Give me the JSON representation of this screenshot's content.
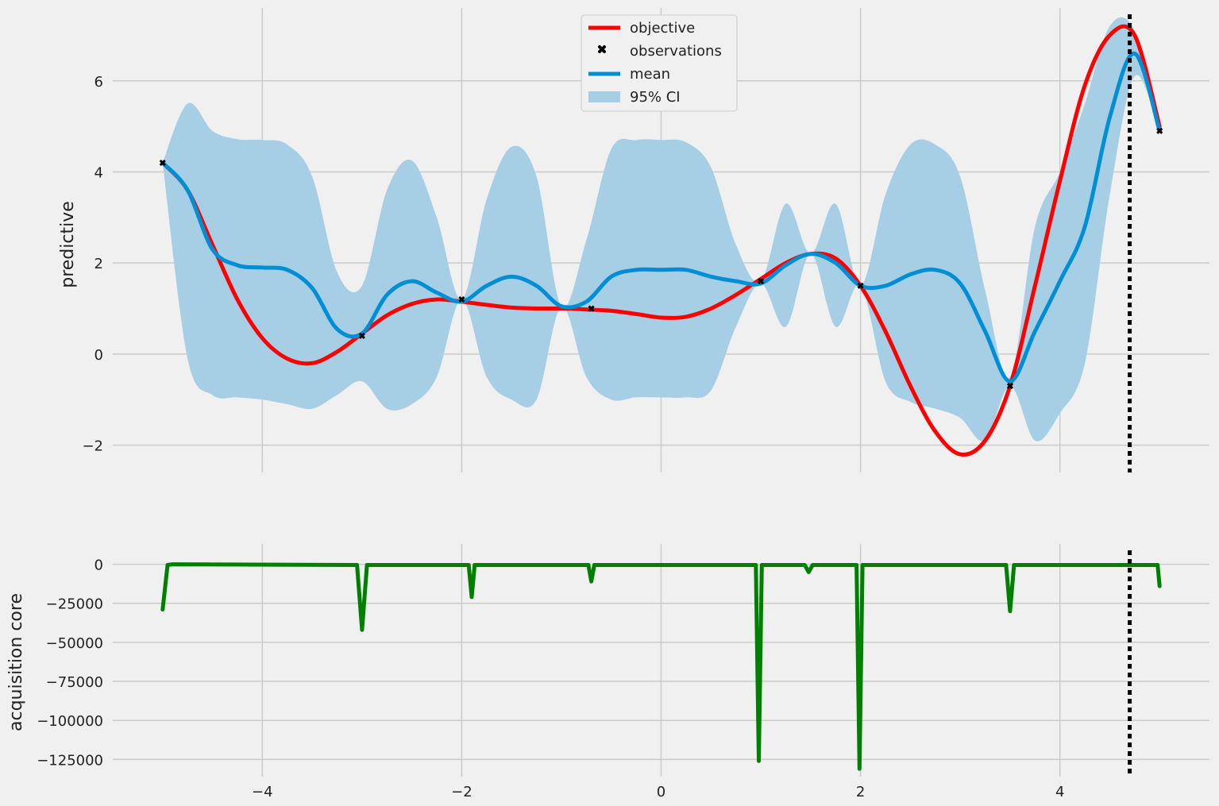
{
  "chart_data": [
    {
      "type": "line",
      "ylabel": "predictive",
      "xlim": [
        -5.5,
        5.5
      ],
      "ylim": [
        -2.6,
        7.6
      ],
      "grid": true,
      "xticks": [
        -4,
        -2,
        0,
        2,
        4
      ],
      "xtick_labels": [
        "",
        "",
        "",
        "",
        ""
      ],
      "yticks": [
        -2,
        0,
        2,
        4,
        6
      ],
      "ytick_labels": [
        "−2",
        "0",
        "2",
        "4",
        "6"
      ],
      "legend": {
        "position": "top-center",
        "entries": [
          {
            "label": "objective",
            "kind": "line",
            "color": "#ff0000"
          },
          {
            "label": "observations",
            "kind": "marker",
            "color": "#000000"
          },
          {
            "label": "mean",
            "kind": "line",
            "color": "#008fd5"
          },
          {
            "label": "95% CI",
            "kind": "band",
            "color": "#a6cfe6"
          }
        ]
      },
      "vline_x": 4.7,
      "series": [
        {
          "name": "objective",
          "color": "#ff0000",
          "x": [
            -5.0,
            -4.75,
            -4.5,
            -4.25,
            -4.0,
            -3.75,
            -3.5,
            -3.25,
            -3.0,
            -2.75,
            -2.5,
            -2.25,
            -2.0,
            -1.75,
            -1.5,
            -1.25,
            -1.0,
            -0.75,
            -0.5,
            -0.25,
            0.0,
            0.25,
            0.5,
            0.75,
            1.0,
            1.25,
            1.5,
            1.75,
            2.0,
            2.25,
            2.5,
            2.75,
            3.0,
            3.25,
            3.5,
            3.75,
            4.0,
            4.25,
            4.5,
            4.75,
            5.0
          ],
          "y": [
            4.2,
            3.6,
            2.4,
            1.2,
            0.35,
            -0.1,
            -0.2,
            0.05,
            0.45,
            0.85,
            1.1,
            1.2,
            1.15,
            1.08,
            1.02,
            1.0,
            1.0,
            0.98,
            0.95,
            0.88,
            0.8,
            0.82,
            1.0,
            1.3,
            1.65,
            2.0,
            2.2,
            2.1,
            1.5,
            0.5,
            -0.7,
            -1.7,
            -2.2,
            -1.9,
            -0.7,
            1.5,
            3.8,
            5.9,
            7.0,
            7.0,
            5.0
          ]
        },
        {
          "name": "mean",
          "color": "#008fd5",
          "x": [
            -5.0,
            -4.75,
            -4.5,
            -4.25,
            -4.0,
            -3.75,
            -3.5,
            -3.25,
            -3.0,
            -2.75,
            -2.5,
            -2.25,
            -2.0,
            -1.75,
            -1.5,
            -1.25,
            -1.0,
            -0.75,
            -0.5,
            -0.25,
            0.0,
            0.25,
            0.5,
            0.75,
            1.0,
            1.25,
            1.5,
            1.75,
            2.0,
            2.25,
            2.5,
            2.75,
            3.0,
            3.25,
            3.5,
            3.75,
            4.0,
            4.25,
            4.5,
            4.75,
            5.0
          ],
          "y": [
            4.2,
            3.6,
            2.3,
            1.95,
            1.9,
            1.85,
            1.45,
            0.55,
            0.45,
            1.3,
            1.6,
            1.35,
            1.15,
            1.5,
            1.7,
            1.5,
            1.05,
            1.15,
            1.7,
            1.85,
            1.85,
            1.85,
            1.7,
            1.6,
            1.55,
            1.95,
            2.2,
            2.0,
            1.5,
            1.5,
            1.75,
            1.85,
            1.55,
            0.5,
            -0.6,
            0.5,
            1.6,
            2.8,
            5.2,
            6.6,
            4.9
          ]
        }
      ],
      "band": {
        "name": "95% CI",
        "color": "#a6cfe6",
        "x": [
          -5.0,
          -4.75,
          -4.5,
          -4.25,
          -4.0,
          -3.75,
          -3.5,
          -3.25,
          -3.0,
          -2.75,
          -2.5,
          -2.25,
          -2.0,
          -1.75,
          -1.5,
          -1.25,
          -1.0,
          -0.75,
          -0.5,
          -0.25,
          0.0,
          0.25,
          0.5,
          0.75,
          1.0,
          1.25,
          1.5,
          1.75,
          2.0,
          2.25,
          2.5,
          2.75,
          3.0,
          3.25,
          3.5,
          3.75,
          4.0,
          4.25,
          4.5,
          4.75,
          5.0
        ],
        "upper": [
          4.2,
          5.5,
          4.9,
          4.72,
          4.7,
          4.6,
          3.9,
          1.8,
          1.5,
          3.6,
          4.25,
          3.0,
          1.2,
          3.4,
          4.55,
          3.9,
          1.05,
          2.5,
          4.5,
          4.7,
          4.7,
          4.65,
          4.1,
          2.4,
          1.6,
          3.3,
          2.2,
          3.3,
          1.5,
          3.5,
          4.6,
          4.6,
          3.9,
          1.4,
          -0.5,
          2.8,
          4.0,
          5.5,
          7.2,
          7.1,
          4.9
        ],
        "lower": [
          4.2,
          -0.1,
          -0.9,
          -0.95,
          -1.0,
          -1.1,
          -1.2,
          -0.9,
          -0.6,
          -1.2,
          -1.1,
          -0.5,
          1.2,
          -0.5,
          -1.0,
          -1.0,
          1.05,
          -0.5,
          -1.0,
          -0.95,
          -0.95,
          -0.95,
          -0.8,
          0.6,
          1.55,
          0.6,
          2.2,
          0.6,
          1.5,
          -0.6,
          -1.05,
          -1.2,
          -1.4,
          -1.9,
          -0.7,
          -1.9,
          -1.3,
          -0.2,
          3.5,
          6.1,
          4.9
        ]
      },
      "observations": {
        "x": [
          -5.0,
          -3.0,
          -2.0,
          -0.7,
          1.0,
          2.0,
          3.5,
          5.0
        ],
        "y": [
          4.2,
          0.4,
          1.2,
          1.0,
          1.6,
          1.5,
          -0.7,
          4.9
        ]
      }
    },
    {
      "type": "line",
      "ylabel": "acquisition core",
      "xlim": [
        -5.5,
        5.5
      ],
      "ylim": [
        -136000,
        13000
      ],
      "grid": true,
      "xticks": [
        -4,
        -2,
        0,
        2,
        4
      ],
      "xtick_labels": [
        "−4",
        "−2",
        "0",
        "2",
        "4"
      ],
      "yticks": [
        0,
        -25000,
        -50000,
        -75000,
        -100000,
        -125000
      ],
      "ytick_labels": [
        "0",
        "−25000",
        "−50000",
        "−75000",
        "−100000",
        "−125000"
      ],
      "vline_x": 4.7,
      "series": [
        {
          "name": "acquisition",
          "color": "#008000",
          "x": [
            -5.0,
            -4.95,
            -4.9,
            -3.05,
            -3.0,
            -2.95,
            -1.93,
            -1.9,
            -1.87,
            -0.73,
            -0.7,
            -0.67,
            0.95,
            0.98,
            1.01,
            1.44,
            1.48,
            1.52,
            1.96,
            1.99,
            2.02,
            3.46,
            3.5,
            3.54,
            4.98,
            5.0
          ],
          "y": [
            -29000,
            -500,
            0,
            -500,
            -42000,
            -500,
            -500,
            -21000,
            -500,
            -500,
            -11000,
            -500,
            -500,
            -126000,
            -500,
            -500,
            -5000,
            -500,
            -500,
            -131000,
            -500,
            -500,
            -30000,
            -500,
            -500,
            -14000
          ]
        }
      ]
    }
  ]
}
